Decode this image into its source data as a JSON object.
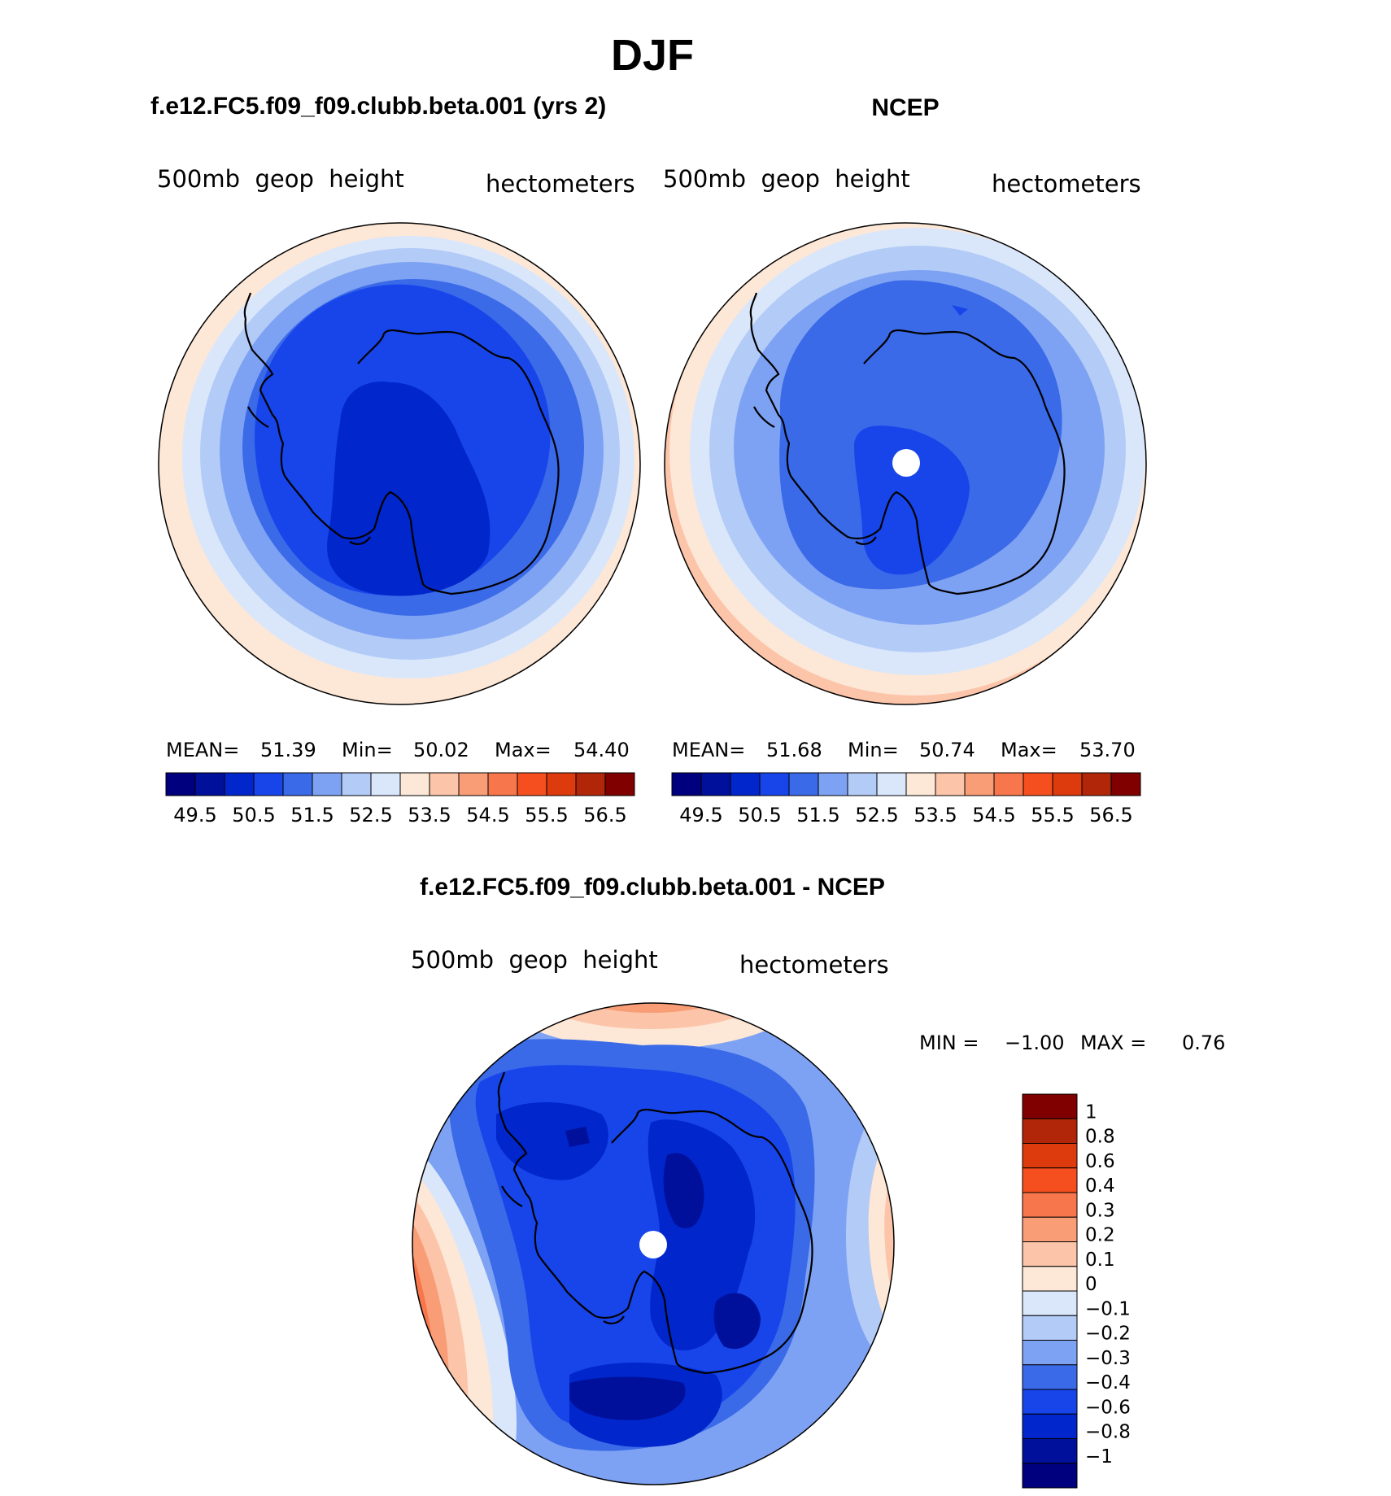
{
  "title": "DJF",
  "colors": {
    "seq": [
      "#00007f",
      "#00109b",
      "#0026cc",
      "#1745ea",
      "#3a6ae8",
      "#7ea2f3",
      "#b3cbf7",
      "#dae7fb",
      "#fde7d6",
      "#fcc4a9",
      "#f99d77",
      "#f8764b",
      "#f64f1f",
      "#dd3a0d",
      "#b12608",
      "#800000"
    ],
    "div": [
      "#00007f",
      "#00109b",
      "#0026cc",
      "#1745ea",
      "#3a6ae8",
      "#7ea2f3",
      "#b3cbf7",
      "#dae7fb",
      "#fde7d6",
      "#fcc4a9",
      "#f99d77",
      "#f8764b",
      "#f64f1f",
      "#dd3a0d",
      "#b12608",
      "#800000"
    ]
  },
  "panels": {
    "model": {
      "heading": "f.e12.FC5.f09_f09.clubb.beta.001 (yrs 2)",
      "left_label": "500mb  geop  height",
      "right_label": "hectometers",
      "stats": {
        "mean_label": "MEAN=",
        "mean": "51.39",
        "min_label": "Min=",
        "min": "50.02",
        "max_label": "Max=",
        "max": "54.40"
      }
    },
    "obs": {
      "heading": "NCEP",
      "left_label": "500mb  geop  height",
      "right_label": "hectometers",
      "stats": {
        "mean_label": "MEAN=",
        "mean": "51.68",
        "min_label": "Min=",
        "min": "50.74",
        "max_label": "Max=",
        "max": "53.70"
      }
    },
    "diff": {
      "heading": "f.e12.FC5.f09_f09.clubb.beta.001 - NCEP",
      "left_label": "500mb  geop  height",
      "right_label": "hectometers",
      "minmax": {
        "min_label": "MIN =",
        "min": "−1.00",
        "max_label": "MAX =",
        "max": "0.76"
      }
    }
  },
  "colorbar_seq": {
    "ticks": [
      "49.5",
      "50.5",
      "51.5",
      "52.5",
      "53.5",
      "54.5",
      "55.5",
      "56.5"
    ]
  },
  "colorbar_div": {
    "labels": [
      "1",
      "0.8",
      "0.6",
      "0.4",
      "0.3",
      "0.2",
      "0.1",
      "0",
      "−0.1",
      "−0.2",
      "−0.3",
      "−0.4",
      "−0.6",
      "−0.8",
      "−1"
    ]
  },
  "chart_data": [
    {
      "type": "heatmap",
      "title": "f.e12.FC5.f09_f09.clubb.beta.001 (yrs 2)",
      "variable": "500mb geop height",
      "units": "hectometers",
      "projection": "south polar stereographic",
      "levels": [
        49.5,
        50,
        50.5,
        51,
        51.5,
        52,
        52.5,
        53,
        53.5,
        54,
        54.5,
        55,
        55.5,
        56,
        56.5
      ],
      "mean": 51.39,
      "min": 50.02,
      "max": 54.4
    },
    {
      "type": "heatmap",
      "title": "NCEP",
      "variable": "500mb geop height",
      "units": "hectometers",
      "projection": "south polar stereographic",
      "levels": [
        49.5,
        50,
        50.5,
        51,
        51.5,
        52,
        52.5,
        53,
        53.5,
        54,
        54.5,
        55,
        55.5,
        56,
        56.5
      ],
      "mean": 51.68,
      "min": 50.74,
      "max": 53.7
    },
    {
      "type": "heatmap",
      "title": "f.e12.FC5.f09_f09.clubb.beta.001 - NCEP",
      "variable": "500mb geop height",
      "units": "hectometers",
      "projection": "south polar stereographic",
      "levels": [
        -1,
        -0.8,
        -0.6,
        -0.4,
        -0.3,
        -0.2,
        -0.1,
        0,
        0.1,
        0.2,
        0.3,
        0.4,
        0.6,
        0.8,
        1
      ],
      "min": -1.0,
      "max": 0.76
    }
  ]
}
